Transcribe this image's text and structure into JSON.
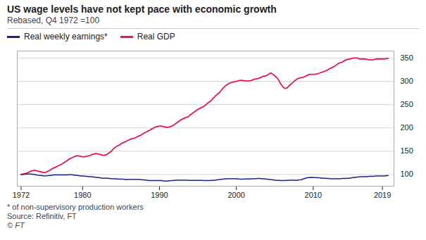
{
  "chart_data": {
    "type": "line",
    "title": "US wage levels have not kept pace with economic growth",
    "subtitle": "Rebased, Q4 1972 =100",
    "notes": [
      "* of non-supervisory production workers",
      "Source: Refinitiv, FT",
      "© FT"
    ],
    "x": [
      1972,
      1972.25,
      1972.5,
      1972.75,
      1973,
      1973.25,
      1973.5,
      1973.75,
      1974,
      1974.25,
      1974.5,
      1974.75,
      1975,
      1975.25,
      1975.5,
      1975.75,
      1976,
      1976.25,
      1976.5,
      1976.75,
      1977,
      1977.25,
      1977.5,
      1977.75,
      1978,
      1978.25,
      1978.5,
      1978.75,
      1979,
      1979.25,
      1979.5,
      1979.75,
      1980,
      1980.25,
      1980.5,
      1980.75,
      1981,
      1981.25,
      1981.5,
      1981.75,
      1982,
      1982.25,
      1982.5,
      1982.75,
      1983,
      1983.25,
      1983.5,
      1983.75,
      1984,
      1984.25,
      1984.5,
      1984.75,
      1985,
      1985.25,
      1985.5,
      1985.75,
      1986,
      1986.25,
      1986.5,
      1986.75,
      1987,
      1987.25,
      1987.5,
      1987.75,
      1988,
      1988.25,
      1988.5,
      1988.75,
      1989,
      1989.25,
      1989.5,
      1989.75,
      1990,
      1990.25,
      1990.5,
      1990.75,
      1991,
      1991.25,
      1991.5,
      1991.75,
      1992,
      1992.25,
      1992.5,
      1992.75,
      1993,
      1993.25,
      1993.5,
      1993.75,
      1994,
      1994.25,
      1994.5,
      1994.75,
      1995,
      1995.25,
      1995.5,
      1995.75,
      1996,
      1996.25,
      1996.5,
      1996.75,
      1997,
      1997.25,
      1997.5,
      1997.75,
      1998,
      1998.25,
      1998.5,
      1998.75,
      1999,
      1999.25,
      1999.5,
      1999.75,
      2000,
      2000.25,
      2000.5,
      2000.75,
      2001,
      2001.25,
      2001.5,
      2001.75,
      2002,
      2002.25,
      2002.5,
      2002.75,
      2003,
      2003.25,
      2003.5,
      2003.75,
      2004,
      2004.25,
      2004.5,
      2004.75,
      2005,
      2005.25,
      2005.5,
      2005.75,
      2006,
      2006.25,
      2006.5,
      2006.75,
      2007,
      2007.25,
      2007.5,
      2007.75,
      2008,
      2008.25,
      2008.5,
      2008.75,
      2009,
      2009.25,
      2009.5,
      2009.75,
      2010,
      2010.25,
      2010.5,
      2010.75,
      2011,
      2011.25,
      2011.5,
      2011.75,
      2012,
      2012.25,
      2012.5,
      2012.75,
      2013,
      2013.25,
      2013.5,
      2013.75,
      2014,
      2014.25,
      2014.5,
      2014.75,
      2015,
      2015.25,
      2015.5,
      2015.75,
      2016,
      2016.25,
      2016.5,
      2016.75,
      2017,
      2017.25,
      2017.5,
      2017.75,
      2018,
      2018.25,
      2018.5,
      2018.75,
      2019,
      2019.25,
      2019.5,
      2019.75
    ],
    "series": [
      {
        "name": "Real weekly earnings*",
        "color": "#1a1f8c",
        "values": [
          100,
          100.3,
          100.6,
          101,
          101.2,
          101,
          100.5,
          100,
          99.2,
          98.5,
          98,
          97.5,
          97,
          97.2,
          97.5,
          98,
          98.5,
          99,
          99.2,
          99.3,
          99.2,
          99,
          99,
          99,
          99.2,
          99.5,
          99.5,
          99,
          98.5,
          98,
          97.5,
          97,
          96.8,
          96.5,
          96,
          95.5,
          95.5,
          95,
          94.5,
          94,
          93.5,
          93,
          92.5,
          92,
          92,
          92,
          91.5,
          91,
          91,
          91,
          90.5,
          90,
          90,
          90,
          89.5,
          89,
          89.5,
          89.5,
          89.5,
          89.5,
          89.5,
          89.5,
          89,
          88.5,
          88.5,
          88,
          87.5,
          87,
          87,
          87,
          87,
          87,
          87,
          87,
          86.5,
          86,
          86,
          86.5,
          87,
          87,
          87.5,
          88,
          88,
          88,
          88,
          88,
          88,
          87.5,
          87.5,
          87.5,
          87.5,
          87.5,
          87.5,
          87.5,
          87.5,
          87,
          87,
          87,
          87,
          87.5,
          87.5,
          88,
          88.5,
          89,
          89.5,
          90,
          90.5,
          91,
          91,
          91,
          91,
          91,
          91,
          90.5,
          90,
          90,
          90,
          90.5,
          90.5,
          90.5,
          91,
          91,
          91,
          91.5,
          91.5,
          91,
          91,
          90.5,
          90,
          89.5,
          89,
          88.5,
          88,
          87.5,
          87.5,
          87,
          87,
          87,
          87.5,
          87.5,
          88,
          88,
          88,
          87.5,
          88,
          88.5,
          89,
          91,
          92,
          93,
          93.5,
          94,
          93.5,
          93.5,
          93,
          93,
          92.5,
          92,
          92,
          91.5,
          91.5,
          91,
          91,
          91,
          91,
          91,
          91,
          91.5,
          91.5,
          91.5,
          92,
          92,
          93,
          93.5,
          94,
          94.5,
          95,
          95,
          95.5,
          95.5,
          95.5,
          96,
          96,
          96,
          96.5,
          97,
          97,
          97,
          97,
          97,
          97.5,
          97.5
        ]
      },
      {
        "name": "Real GDP",
        "color": "#e8174b",
        "values": [
          100,
          101,
          102,
          103,
          105,
          107,
          108,
          109,
          108,
          107,
          106,
          105,
          104,
          105,
          107,
          109,
          112,
          114,
          116,
          118,
          120,
          122,
          125,
          127,
          130,
          133,
          135,
          137,
          139,
          140,
          140,
          139,
          138,
          138,
          139,
          140,
          141,
          143,
          144,
          145,
          144,
          143,
          142,
          141,
          142,
          144,
          147,
          150,
          155,
          158,
          161,
          163,
          166,
          168,
          170,
          172,
          174,
          176,
          177,
          178,
          180,
          182,
          184,
          186,
          189,
          191,
          193,
          195,
          198,
          200,
          202,
          203,
          204,
          204,
          203,
          202,
          201,
          202,
          203,
          205,
          208,
          211,
          214,
          217,
          219,
          221,
          223,
          224,
          228,
          231,
          234,
          237,
          240,
          242,
          244,
          246,
          249,
          253,
          256,
          259,
          264,
          268,
          272,
          275,
          280,
          285,
          289,
          292,
          295,
          297,
          298,
          299,
          300,
          301,
          302,
          302,
          301,
          301,
          301,
          301,
          302,
          304,
          305,
          306,
          307,
          309,
          311,
          311,
          313,
          316,
          318,
          315,
          312,
          308,
          303,
          295,
          289,
          285,
          285,
          288,
          293,
          296,
          300,
          303,
          306,
          307,
          308,
          309,
          311,
          313,
          315,
          315,
          315,
          315,
          316,
          317,
          319,
          320,
          322,
          323,
          326,
          328,
          330,
          332,
          335,
          338,
          340,
          341,
          344,
          346,
          347,
          348,
          349,
          350,
          350,
          350,
          348,
          348,
          348,
          348,
          347,
          346,
          346,
          346,
          347,
          348,
          348,
          348,
          348,
          348,
          349,
          349
        ]
      }
    ],
    "xlim": [
      1971.5,
      2020.5
    ],
    "xticks": [
      1972,
      1980,
      1990,
      2000,
      2010,
      2019
    ],
    "ylim": [
      75,
      365
    ],
    "yticks": [
      100,
      150,
      200,
      250,
      300,
      350
    ],
    "grid": true,
    "legend": "upper left"
  }
}
